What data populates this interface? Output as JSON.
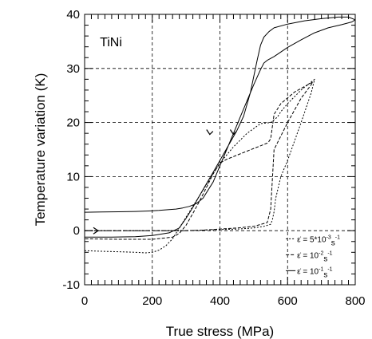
{
  "chart_data": {
    "type": "line",
    "title": "",
    "annotation": "TiNi",
    "xlabel": "True stress (MPa)",
    "ylabel": "Temperature variation (K)",
    "xlim": [
      0,
      800
    ],
    "ylim": [
      -10,
      40
    ],
    "xticks": [
      0,
      200,
      400,
      600,
      800
    ],
    "yticks": [
      -10,
      0,
      10,
      20,
      30,
      40
    ],
    "grid": true,
    "grid_style": "dashed",
    "legend_position": "bottom-right",
    "legend": [
      {
        "prefix": "ε̇ = 5*10",
        "exp": "-3",
        "suffix": "s",
        "exp2": "-1",
        "dash": "2,2"
      },
      {
        "prefix": "ε̇ = 10",
        "exp": "-2",
        "suffix": "s",
        "exp2": "-1",
        "dash": "4,2"
      },
      {
        "prefix": "ε̇ = 10",
        "exp": "-1",
        "suffix": "s",
        "exp2": "-1",
        "dash": ""
      }
    ],
    "series": [
      {
        "dash": "",
        "x": [
          0,
          80,
          150,
          200,
          250,
          280,
          300,
          320,
          350,
          380,
          400,
          420,
          450,
          470,
          490,
          510,
          520,
          530,
          545,
          560,
          600,
          650,
          700,
          750,
          780,
          800,
          790,
          760,
          720,
          680,
          640,
          600,
          560,
          540,
          530,
          520,
          500,
          480,
          460,
          440,
          420,
          400,
          380,
          350,
          330,
          310,
          290,
          270,
          250,
          220,
          190,
          150,
          100,
          50,
          0
        ],
        "y": [
          -1.2,
          -1.2,
          -1.1,
          -0.9,
          -0.4,
          0.5,
          2.3,
          4.3,
          7.6,
          10.8,
          13.0,
          15.2,
          18.5,
          21.2,
          25.5,
          31.5,
          34.3,
          35.8,
          36.8,
          37.5,
          38.2,
          38.8,
          39.2,
          39.5,
          39.5,
          39.0,
          38.6,
          38.1,
          37.5,
          36.6,
          35.3,
          33.9,
          32.2,
          31.5,
          31.0,
          29.8,
          27.0,
          24.0,
          21.0,
          18.0,
          15.0,
          12.0,
          9.0,
          6.0,
          5.0,
          4.5,
          4.2,
          4.0,
          3.9,
          3.75,
          3.65,
          3.55,
          3.5,
          3.45,
          3.4
        ]
      },
      {
        "dash": "4,2",
        "x": [
          0,
          100,
          200,
          260,
          300,
          350,
          400,
          450,
          500,
          540,
          550,
          560,
          580,
          600,
          640,
          670,
          675,
          660,
          620,
          580,
          560,
          550,
          545,
          540,
          520,
          500,
          480,
          460,
          440,
          420,
          400,
          380,
          360,
          340,
          320,
          300,
          280,
          260,
          200,
          100,
          0
        ],
        "y": [
          0,
          0,
          0,
          0,
          0,
          0.1,
          0.3,
          0.5,
          0.8,
          1.5,
          4.0,
          15.0,
          17.5,
          20.0,
          24.5,
          27.0,
          27.5,
          27.0,
          25.6,
          23.5,
          21.5,
          17.0,
          16.5,
          16.2,
          15.7,
          15.2,
          14.7,
          14.2,
          13.7,
          13.2,
          12.5,
          10.5,
          8.0,
          5.5,
          3.2,
          1.0,
          -0.5,
          -1.2,
          -1.6,
          -1.6,
          -1.5
        ]
      },
      {
        "dash": "2,2",
        "x": [
          0,
          100,
          200,
          260,
          300,
          350,
          400,
          450,
          500,
          530,
          550,
          555,
          560,
          565,
          580,
          600,
          640,
          670,
          680,
          670,
          640,
          600,
          580,
          570,
          560,
          555,
          550,
          520,
          480,
          440,
          400,
          380,
          360,
          340,
          320,
          300,
          280,
          260,
          240,
          220,
          200,
          180,
          150,
          100,
          50,
          0
        ],
        "y": [
          0,
          0,
          0,
          0,
          0,
          0.1,
          0.2,
          0.3,
          0.5,
          0.8,
          1.2,
          2.0,
          3.5,
          6.0,
          10.0,
          13.0,
          20.0,
          25.5,
          28.0,
          27.5,
          26.0,
          23.5,
          22.0,
          21.0,
          20.5,
          20.2,
          20.0,
          19.8,
          18.0,
          15.5,
          12.5,
          10.5,
          8.5,
          6.5,
          4.5,
          2.5,
          0.5,
          -1.5,
          -2.8,
          -3.6,
          -4.0,
          -4.1,
          -4.0,
          -3.9,
          -3.8,
          -3.7
        ]
      }
    ],
    "arrows": [
      {
        "x": 370,
        "y": 17.8,
        "dir": "down"
      },
      {
        "x": 440,
        "y": 17.8,
        "dir": "down"
      },
      {
        "x": 40,
        "y": 0,
        "dir": "right"
      }
    ]
  }
}
